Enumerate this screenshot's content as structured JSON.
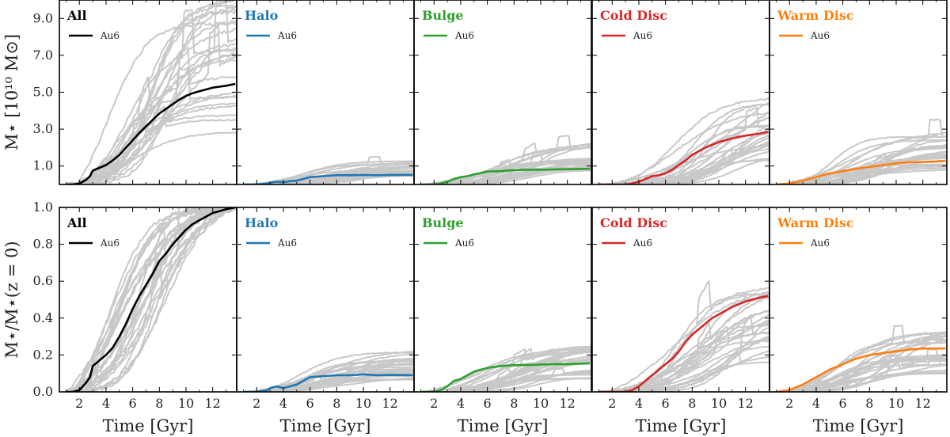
{
  "chart_data": {
    "type": "line",
    "title": "",
    "xlabel": "Time [Gyr]",
    "x_ticks": [
      "2",
      "4",
      "6",
      "8",
      "10",
      "12"
    ],
    "xlim": [
      0.5,
      13.8
    ],
    "legend_label": "Au6",
    "background_color": "#c8c8c8",
    "components": [
      {
        "name": "All",
        "color": "#000000"
      },
      {
        "name": "Halo",
        "color": "#1f77b4"
      },
      {
        "name": "Bulge",
        "color": "#2ca02c"
      },
      {
        "name": "Cold Disc",
        "color": "#d62728"
      },
      {
        "name": "Warm Disc",
        "color": "#ff7f0e"
      }
    ],
    "rows": [
      {
        "ylabel": "M⋆ [10¹⁰ M⊙]",
        "ylim": [
          0,
          10
        ],
        "y_ticks": [
          "1.0",
          "3.0",
          "5.0",
          "7.0",
          "9.0"
        ],
        "y_values": [
          1,
          3,
          5,
          7,
          9
        ],
        "au6": [
          {
            "component": "All",
            "x": [
              1.0,
              1.5,
              2.0,
              2.5,
              2.8,
              3.0,
              3.5,
              4.0,
              4.5,
              5.0,
              5.5,
              6.0,
              6.5,
              7.0,
              7.5,
              8.0,
              8.5,
              9.0,
              9.5,
              10.0,
              10.5,
              11.0,
              11.5,
              12.0,
              12.5,
              13.0,
              13.7
            ],
            "y": [
              0.0,
              0.0,
              0.05,
              0.25,
              0.45,
              0.75,
              0.9,
              1.05,
              1.3,
              1.6,
              2.0,
              2.4,
              2.8,
              3.15,
              3.5,
              3.85,
              4.1,
              4.35,
              4.6,
              4.8,
              4.95,
              5.05,
              5.15,
              5.25,
              5.3,
              5.35,
              5.45
            ]
          },
          {
            "component": "Halo",
            "x": [
              1.0,
              2.0,
              2.8,
              3.0,
              3.5,
              4.0,
              4.5,
              5.0,
              5.5,
              6.0,
              7.0,
              8.0,
              9.0,
              10.0,
              11.0,
              12.0,
              13.7
            ],
            "y": [
              0.0,
              0.0,
              0.05,
              0.1,
              0.15,
              0.12,
              0.18,
              0.2,
              0.3,
              0.4,
              0.45,
              0.5,
              0.5,
              0.52,
              0.5,
              0.52,
              0.52
            ]
          },
          {
            "component": "Bulge",
            "x": [
              1.0,
              2.0,
              2.5,
              3.0,
              3.5,
              4.0,
              4.5,
              5.0,
              5.5,
              6.0,
              7.0,
              8.0,
              9.0,
              10.0,
              11.0,
              12.0,
              13.7
            ],
            "y": [
              0.0,
              0.0,
              0.05,
              0.15,
              0.3,
              0.4,
              0.45,
              0.55,
              0.62,
              0.7,
              0.72,
              0.78,
              0.8,
              0.8,
              0.82,
              0.83,
              0.85
            ]
          },
          {
            "component": "Cold Disc",
            "x": [
              1.0,
              3.0,
              3.5,
              4.0,
              4.5,
              5.0,
              5.5,
              6.0,
              6.5,
              7.0,
              7.5,
              8.0,
              8.5,
              9.0,
              9.5,
              10.0,
              11.0,
              12.0,
              13.0,
              13.7
            ],
            "y": [
              0.0,
              0.0,
              0.05,
              0.15,
              0.3,
              0.45,
              0.5,
              0.6,
              0.8,
              1.05,
              1.3,
              1.6,
              1.8,
              2.0,
              2.15,
              2.3,
              2.5,
              2.65,
              2.75,
              2.85
            ]
          },
          {
            "component": "Warm Disc",
            "x": [
              1.0,
              2.0,
              3.0,
              4.0,
              5.0,
              6.0,
              7.0,
              8.0,
              9.0,
              10.0,
              11.0,
              12.0,
              13.0,
              13.7
            ],
            "y": [
              0.0,
              0.05,
              0.2,
              0.4,
              0.6,
              0.72,
              0.85,
              0.95,
              1.05,
              1.15,
              1.2,
              1.22,
              1.24,
              1.28
            ]
          }
        ]
      },
      {
        "ylabel": "M⋆/M⋆(z = 0)",
        "ylim": [
          0,
          1
        ],
        "y_ticks": [
          "0.0",
          "0.2",
          "0.4",
          "0.6",
          "0.8",
          "1.0"
        ],
        "y_values": [
          0,
          0.2,
          0.4,
          0.6,
          0.8,
          1.0
        ],
        "au6": [
          {
            "component": "All",
            "x": [
              1.0,
              1.5,
              2.0,
              2.5,
              2.8,
              3.0,
              3.5,
              4.0,
              4.5,
              5.0,
              5.5,
              6.0,
              6.5,
              7.0,
              7.5,
              8.0,
              8.5,
              9.0,
              9.5,
              10.0,
              10.5,
              11.0,
              11.5,
              12.0,
              12.5,
              13.0,
              13.7
            ],
            "y": [
              0.0,
              0.0,
              0.01,
              0.05,
              0.08,
              0.14,
              0.17,
              0.2,
              0.24,
              0.3,
              0.37,
              0.45,
              0.52,
              0.58,
              0.64,
              0.71,
              0.75,
              0.8,
              0.84,
              0.88,
              0.91,
              0.93,
              0.95,
              0.97,
              0.98,
              0.99,
              1.0
            ]
          },
          {
            "component": "Halo",
            "x": [
              1.0,
              2.0,
              2.8,
              3.0,
              3.5,
              4.0,
              4.5,
              5.0,
              5.5,
              6.0,
              7.0,
              8.0,
              9.0,
              10.0,
              11.0,
              12.0,
              13.7
            ],
            "y": [
              0.0,
              0.0,
              0.01,
              0.02,
              0.03,
              0.02,
              0.03,
              0.04,
              0.06,
              0.08,
              0.085,
              0.09,
              0.09,
              0.095,
              0.09,
              0.092,
              0.09
            ]
          },
          {
            "component": "Bulge",
            "x": [
              1.0,
              2.0,
              2.5,
              3.0,
              3.5,
              4.0,
              4.5,
              5.0,
              5.5,
              6.0,
              7.0,
              8.0,
              9.0,
              10.0,
              11.0,
              12.0,
              13.7
            ],
            "y": [
              0.0,
              0.0,
              0.01,
              0.03,
              0.06,
              0.07,
              0.09,
              0.11,
              0.12,
              0.13,
              0.14,
              0.145,
              0.145,
              0.148,
              0.15,
              0.15,
              0.155
            ]
          },
          {
            "component": "Cold Disc",
            "x": [
              1.0,
              3.0,
              3.5,
              4.0,
              4.5,
              5.0,
              5.5,
              6.0,
              6.5,
              7.0,
              7.5,
              8.0,
              8.5,
              9.0,
              9.5,
              10.0,
              11.0,
              12.0,
              13.0,
              13.7
            ],
            "y": [
              0.0,
              0.0,
              0.01,
              0.03,
              0.06,
              0.09,
              0.12,
              0.15,
              0.18,
              0.22,
              0.27,
              0.31,
              0.34,
              0.37,
              0.4,
              0.42,
              0.46,
              0.49,
              0.51,
              0.52
            ]
          },
          {
            "component": "Warm Disc",
            "x": [
              1.0,
              2.0,
              3.0,
              4.0,
              5.0,
              6.0,
              7.0,
              8.0,
              9.0,
              10.0,
              11.0,
              12.0,
              13.0,
              13.7
            ],
            "y": [
              0.0,
              0.01,
              0.04,
              0.08,
              0.12,
              0.15,
              0.18,
              0.2,
              0.21,
              0.22,
              0.23,
              0.235,
              0.235,
              0.235
            ]
          }
        ]
      }
    ]
  }
}
